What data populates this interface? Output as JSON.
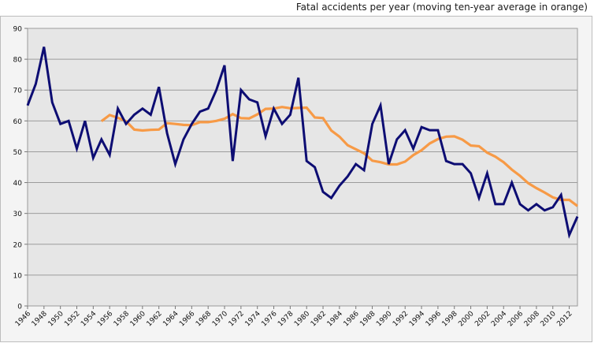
{
  "chart_data": {
    "type": "line",
    "title": "Fatal accidents per year (moving ten-year average in orange)",
    "xlabel": "",
    "ylabel": "",
    "ylim": [
      0,
      90
    ],
    "yticks": [
      0,
      10,
      20,
      30,
      40,
      50,
      60,
      70,
      80,
      90
    ],
    "xlim": [
      1946,
      2013
    ],
    "xticks": [
      1946,
      1948,
      1950,
      1952,
      1954,
      1956,
      1958,
      1960,
      1962,
      1964,
      1966,
      1968,
      1970,
      1972,
      1974,
      1976,
      1978,
      1980,
      1982,
      1984,
      1986,
      1988,
      1990,
      1992,
      1994,
      1996,
      1998,
      2000,
      2002,
      2004,
      2006,
      2008,
      2010,
      2012
    ],
    "grid": true,
    "legend": "none",
    "series": [
      {
        "color": "#0d0d73",
        "x": [
          1946,
          1947,
          1948,
          1949,
          1950,
          1951,
          1952,
          1953,
          1954,
          1955,
          1956,
          1957,
          1958,
          1959,
          1960,
          1961,
          1962,
          1963,
          1964,
          1965,
          1966,
          1967,
          1968,
          1969,
          1970,
          1971,
          1972,
          1973,
          1974,
          1975,
          1976,
          1977,
          1978,
          1979,
          1980,
          1981,
          1982,
          1983,
          1984,
          1985,
          1986,
          1987,
          1988,
          1989,
          1990,
          1991,
          1992,
          1993,
          1994,
          1995,
          1996,
          1997,
          1998,
          1999,
          2000,
          2001,
          2002,
          2003,
          2004,
          2005,
          2006,
          2007,
          2008,
          2009,
          2010,
          2011,
          2012,
          2013
        ],
        "values": [
          65,
          72,
          84,
          66,
          59,
          60,
          51,
          60,
          48,
          54,
          49,
          64,
          59,
          62,
          64,
          62,
          71,
          56,
          46,
          54,
          59,
          63,
          64,
          70,
          78,
          47,
          70,
          67,
          66,
          55,
          64,
          59,
          62,
          74,
          47,
          45,
          37,
          35,
          39,
          42,
          46,
          44,
          59,
          65,
          46,
          54,
          57,
          51,
          58,
          57,
          57,
          47,
          46,
          46,
          43,
          35,
          43,
          33,
          33,
          40,
          33,
          31,
          33,
          31,
          32,
          36,
          23,
          29
        ]
      },
      {
        "color": "#f79a46",
        "x": [
          1955,
          1956,
          1957,
          1958,
          1959,
          1960,
          1961,
          1962,
          1963,
          1964,
          1965,
          1966,
          1967,
          1968,
          1969,
          1970,
          1971,
          1972,
          1973,
          1974,
          1975,
          1976,
          1977,
          1978,
          1979,
          1980,
          1981,
          1982,
          1983,
          1984,
          1985,
          1986,
          1987,
          1988,
          1989,
          1990,
          1991,
          1992,
          1993,
          1994,
          1995,
          1996,
          1997,
          1998,
          1999,
          2000,
          2001,
          2002,
          2003,
          2004,
          2005,
          2006,
          2007,
          2008,
          2009,
          2010,
          2011,
          2012,
          2013
        ],
        "values": [
          59.9,
          61.9,
          61.0,
          59.9,
          57.2,
          56.9,
          57.1,
          57.2,
          59.3,
          59.0,
          58.7,
          58.6,
          59.6,
          59.6,
          60.0,
          60.7,
          62.2,
          60.9,
          60.8,
          62.1,
          63.9,
          64.0,
          64.5,
          64.1,
          64.2,
          64.3,
          61.1,
          60.9,
          56.9,
          54.9,
          52.1,
          50.8,
          49.5,
          47.1,
          46.6,
          45.9,
          45.9,
          46.8,
          48.9,
          50.5,
          52.7,
          54.1,
          54.9,
          55.0,
          53.9,
          52.0,
          51.8,
          49.7,
          48.4,
          46.6,
          44.2,
          42.2,
          39.8,
          38.2,
          36.8,
          35.2,
          34.4,
          34.4,
          32.4
        ]
      }
    ]
  }
}
